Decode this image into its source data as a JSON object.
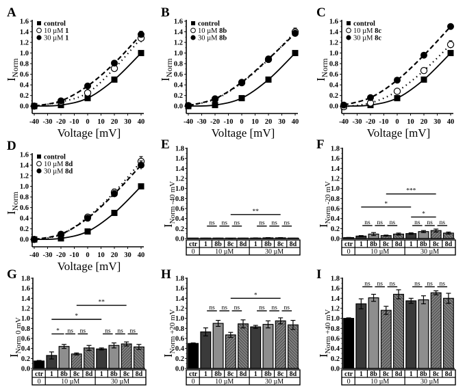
{
  "figure": {
    "colors": {
      "control": "#000000",
      "conc10_cpd1": "#3a3a3a",
      "conc10_8b": "#8c8c8c",
      "hatch_bg": "#6e6e6e",
      "hatch_line": "#b5b5b5"
    }
  },
  "chart_data": [
    {
      "panel": "A",
      "type": "line",
      "xlabel": "Voltage [mV]",
      "ylabel": "I",
      "ylabel_sub": "Norm",
      "xlim": [
        -40,
        40
      ],
      "ylim": [
        -0.1,
        1.6
      ],
      "xticks": [
        "-40",
        "-30",
        "-20",
        "-10",
        "0",
        "10",
        "20",
        "30",
        "40"
      ],
      "yticks": [
        "0.0",
        "0.2",
        "0.4",
        "0.6",
        "0.8",
        "1.0",
        "1.2",
        "1.4",
        "1.6"
      ],
      "x": [
        -40,
        -20,
        0,
        20,
        40
      ],
      "legend_position": "top-left",
      "series": [
        {
          "name": "control",
          "compound": "",
          "marker": "filled-square",
          "line": "solid",
          "values": [
            0.0,
            0.02,
            0.15,
            0.5,
            1.0
          ],
          "errors": [
            0.01,
            0.01,
            0.01,
            0.01,
            0.01
          ]
        },
        {
          "name": "10 µM ",
          "compound": "1",
          "marker": "open-circle",
          "line": "dotted",
          "values": [
            0.0,
            0.08,
            0.25,
            0.71,
            1.28
          ],
          "errors": [
            0.02,
            0.03,
            0.04,
            0.06,
            0.08
          ]
        },
        {
          "name": "30 µM ",
          "compound": "1",
          "marker": "filled-circle",
          "line": "dashed",
          "values": [
            0.0,
            0.1,
            0.38,
            0.81,
            1.35
          ],
          "errors": [
            0.02,
            0.03,
            0.04,
            0.05,
            0.06
          ]
        }
      ]
    },
    {
      "panel": "B",
      "type": "line",
      "xlabel": "Voltage [mV]",
      "ylabel": "I",
      "ylabel_sub": "Norm",
      "xlim": [
        -40,
        40
      ],
      "ylim": [
        -0.1,
        1.6
      ],
      "xticks": [
        "-40",
        "-30",
        "-20",
        "-10",
        "0",
        "10",
        "20",
        "30",
        "40"
      ],
      "yticks": [
        "0.0",
        "0.2",
        "0.4",
        "0.6",
        "0.8",
        "1.0",
        "1.2",
        "1.4",
        "1.6"
      ],
      "x": [
        -40,
        -20,
        0,
        20,
        40
      ],
      "legend_position": "top-left",
      "series": [
        {
          "name": "control",
          "compound": "",
          "marker": "filled-square",
          "line": "solid",
          "values": [
            0.0,
            0.02,
            0.15,
            0.5,
            1.0
          ],
          "errors": [
            0.01,
            0.01,
            0.01,
            0.01,
            0.01
          ]
        },
        {
          "name": "10 µM ",
          "compound": "8b",
          "marker": "open-circle",
          "line": "dotted",
          "values": [
            0.01,
            0.13,
            0.44,
            0.88,
            1.4
          ],
          "errors": [
            0.02,
            0.03,
            0.04,
            0.05,
            0.07
          ]
        },
        {
          "name": "30 µM ",
          "compound": "8b",
          "marker": "filled-circle",
          "line": "dashed",
          "values": [
            0.01,
            0.14,
            0.45,
            0.89,
            1.37
          ],
          "errors": [
            0.02,
            0.03,
            0.04,
            0.05,
            0.06
          ]
        }
      ]
    },
    {
      "panel": "C",
      "type": "line",
      "xlabel": "Voltage [mV]",
      "ylabel": "I",
      "ylabel_sub": "Norm",
      "xlim": [
        -40,
        40
      ],
      "ylim": [
        -0.1,
        1.6
      ],
      "xticks": [
        "-40",
        "-30",
        "-20",
        "-10",
        "0",
        "10",
        "20",
        "30",
        "40"
      ],
      "yticks": [
        "0.0",
        "0.2",
        "0.4",
        "0.6",
        "0.8",
        "1.0",
        "1.2",
        "1.4",
        "1.6"
      ],
      "x": [
        -40,
        -20,
        0,
        20,
        40
      ],
      "legend_position": "top-left",
      "series": [
        {
          "name": "control",
          "compound": "",
          "marker": "filled-square",
          "line": "solid",
          "values": [
            0.0,
            0.02,
            0.15,
            0.5,
            1.0
          ],
          "errors": [
            0.01,
            0.01,
            0.01,
            0.01,
            0.01
          ]
        },
        {
          "name": "10 µM ",
          "compound": "8c",
          "marker": "open-circle",
          "line": "dotted",
          "values": [
            -0.01,
            0.06,
            0.28,
            0.67,
            1.16
          ],
          "errors": [
            0.02,
            0.02,
            0.03,
            0.04,
            0.07
          ]
        },
        {
          "name": "30 µM ",
          "compound": "8c",
          "marker": "filled-circle",
          "line": "dashed",
          "values": [
            0.02,
            0.16,
            0.49,
            0.96,
            1.5
          ],
          "errors": [
            0.02,
            0.02,
            0.03,
            0.04,
            0.04
          ]
        }
      ]
    },
    {
      "panel": "D",
      "type": "line",
      "xlabel": "Voltage [mV]",
      "ylabel": "I",
      "ylabel_sub": "Norm",
      "xlim": [
        -40,
        40
      ],
      "ylim": [
        -0.1,
        1.6
      ],
      "xticks": [
        "-40",
        "-30",
        "-20",
        "-10",
        "0",
        "10",
        "20",
        "30",
        "40"
      ],
      "yticks": [
        "0.0",
        "0.2",
        "0.4",
        "0.6",
        "0.8",
        "1.0",
        "1.2",
        "1.4",
        "1.6"
      ],
      "x": [
        -40,
        -20,
        0,
        20,
        40
      ],
      "legend_position": "top-left",
      "series": [
        {
          "name": "control",
          "compound": "",
          "marker": "filled-square",
          "line": "solid",
          "values": [
            0.0,
            0.02,
            0.15,
            0.5,
            1.0
          ],
          "errors": [
            0.01,
            0.01,
            0.01,
            0.01,
            0.01
          ]
        },
        {
          "name": "10 µM ",
          "compound": "8d",
          "marker": "open-circle",
          "line": "dotted",
          "values": [
            0.0,
            0.09,
            0.42,
            0.89,
            1.47
          ],
          "errors": [
            0.02,
            0.03,
            0.04,
            0.06,
            0.09
          ]
        },
        {
          "name": "30 µM ",
          "compound": "8d",
          "marker": "filled-circle",
          "line": "dashed",
          "values": [
            0.0,
            0.1,
            0.4,
            0.86,
            1.4
          ],
          "errors": [
            0.02,
            0.03,
            0.04,
            0.06,
            0.08
          ]
        }
      ]
    },
    {
      "panel": "E",
      "type": "bar",
      "ylabel": "I",
      "ylabel_sub": "Norm -40 mV",
      "ylim": [
        0,
        1.8
      ],
      "yticks": [
        "0.0",
        "0.2",
        "0.4",
        "0.6",
        "0.8",
        "1.0",
        "1.2",
        "1.4",
        "1.6",
        "1.8"
      ],
      "categories": [
        "ctr",
        "1",
        "8b",
        "8c",
        "8d",
        "1",
        "8b",
        "8c",
        "8d"
      ],
      "groups": [
        {
          "label": "0",
          "span": 1
        },
        {
          "label": "10 µM",
          "span": 4
        },
        {
          "label": "30 µM",
          "span": 4
        }
      ],
      "values": [
        0.0,
        0.005,
        0.005,
        0.0,
        0.005,
        0.01,
        0.015,
        0.015,
        0.005
      ],
      "errors": [
        0.0,
        0.003,
        0.003,
        0.002,
        0.003,
        0.004,
        0.005,
        0.005,
        0.003
      ],
      "significance": [
        {
          "from": 1,
          "to": 2,
          "label": "ns",
          "y": 0.25
        },
        {
          "from": 2,
          "to": 3,
          "label": "ns",
          "y": 0.25
        },
        {
          "from": 3,
          "to": 4,
          "label": "ns",
          "y": 0.25
        },
        {
          "from": 5,
          "to": 6,
          "label": "ns",
          "y": 0.25
        },
        {
          "from": 6,
          "to": 7,
          "label": "ns",
          "y": 0.25
        },
        {
          "from": 7,
          "to": 8,
          "label": "ns",
          "y": 0.25
        },
        {
          "from": 3,
          "to": 7,
          "label": "**",
          "y": 0.48
        }
      ]
    },
    {
      "panel": "F",
      "type": "bar",
      "ylabel": "I",
      "ylabel_sub": "Norm -20 mV",
      "ylim": [
        0,
        1.8
      ],
      "yticks": [
        "0.0",
        "0.2",
        "0.4",
        "0.6",
        "0.8",
        "1.0",
        "1.2",
        "1.4",
        "1.6",
        "1.8"
      ],
      "categories": [
        "ctr",
        "1",
        "8b",
        "8c",
        "8d",
        "1",
        "8b",
        "8c",
        "8d"
      ],
      "groups": [
        {
          "label": "0",
          "span": 1
        },
        {
          "label": "10 µM",
          "span": 4
        },
        {
          "label": "30 µM",
          "span": 4
        }
      ],
      "values": [
        0.02,
        0.05,
        0.09,
        0.06,
        0.09,
        0.1,
        0.14,
        0.16,
        0.11
      ],
      "errors": [
        0.003,
        0.01,
        0.03,
        0.01,
        0.02,
        0.015,
        0.02,
        0.03,
        0.02
      ],
      "significance": [
        {
          "from": 1,
          "to": 2,
          "label": "ns",
          "y": 0.26
        },
        {
          "from": 2,
          "to": 3,
          "label": "ns",
          "y": 0.26
        },
        {
          "from": 3,
          "to": 4,
          "label": "ns",
          "y": 0.26
        },
        {
          "from": 5,
          "to": 6,
          "label": "ns",
          "y": 0.26
        },
        {
          "from": 6,
          "to": 7,
          "label": "ns",
          "y": 0.26
        },
        {
          "from": 7,
          "to": 8,
          "label": "ns",
          "y": 0.26
        },
        {
          "from": 5,
          "to": 7,
          "label": "*",
          "y": 0.43
        },
        {
          "from": 1,
          "to": 5,
          "label": "*",
          "y": 0.63
        },
        {
          "from": 3,
          "to": 7,
          "label": "***",
          "y": 0.89
        }
      ]
    },
    {
      "panel": "G",
      "type": "bar",
      "ylabel": "I",
      "ylabel_sub": "Norm 0 mV",
      "ylim": [
        0,
        1.8
      ],
      "yticks": [
        "0.0",
        "0.2",
        "0.4",
        "0.6",
        "0.8",
        "1.0",
        "1.2",
        "1.4",
        "1.6",
        "1.8"
      ],
      "categories": [
        "ctr",
        "1",
        "8b",
        "8c",
        "8d",
        "1",
        "8b",
        "8c",
        "8d"
      ],
      "groups": [
        {
          "label": "0",
          "span": 1
        },
        {
          "label": "10 µM",
          "span": 4
        },
        {
          "label": "30 µM",
          "span": 4
        }
      ],
      "values": [
        0.15,
        0.26,
        0.44,
        0.29,
        0.41,
        0.39,
        0.46,
        0.49,
        0.43
      ],
      "errors": [
        0.01,
        0.07,
        0.04,
        0.02,
        0.05,
        0.02,
        0.05,
        0.04,
        0.05
      ],
      "significance": [
        {
          "from": 1,
          "to": 2,
          "label": "*",
          "y": 0.69
        },
        {
          "from": 2,
          "to": 3,
          "label": "ns",
          "y": 0.69
        },
        {
          "from": 3,
          "to": 4,
          "label": "ns",
          "y": 0.69
        },
        {
          "from": 5,
          "to": 6,
          "label": "ns",
          "y": 0.69
        },
        {
          "from": 6,
          "to": 7,
          "label": "ns",
          "y": 0.69
        },
        {
          "from": 7,
          "to": 8,
          "label": "ns",
          "y": 0.69
        },
        {
          "from": 1,
          "to": 5,
          "label": "*",
          "y": 0.98
        },
        {
          "from": 3,
          "to": 7,
          "label": "**",
          "y": 1.26
        }
      ]
    },
    {
      "panel": "H",
      "type": "bar",
      "ylabel": "I",
      "ylabel_sub": "Norm +20 mV",
      "ylim": [
        0,
        1.8
      ],
      "yticks": [
        "0.0",
        "0.2",
        "0.4",
        "0.6",
        "0.8",
        "1.0",
        "1.2",
        "1.4",
        "1.6",
        "1.8"
      ],
      "categories": [
        "ctr",
        "1",
        "8b",
        "8c",
        "8d",
        "1",
        "8b",
        "8c",
        "8d"
      ],
      "groups": [
        {
          "label": "0",
          "span": 1
        },
        {
          "label": "10 µM",
          "span": 4
        },
        {
          "label": "30 µM",
          "span": 4
        }
      ],
      "values": [
        0.5,
        0.73,
        0.9,
        0.67,
        0.89,
        0.83,
        0.88,
        0.95,
        0.87
      ],
      "errors": [
        0.01,
        0.08,
        0.06,
        0.05,
        0.08,
        0.03,
        0.07,
        0.06,
        0.09
      ],
      "significance": [
        {
          "from": 1,
          "to": 2,
          "label": "ns",
          "y": 1.15
        },
        {
          "from": 2,
          "to": 3,
          "label": "ns",
          "y": 1.15
        },
        {
          "from": 3,
          "to": 4,
          "label": "ns",
          "y": 1.15
        },
        {
          "from": 5,
          "to": 6,
          "label": "ns",
          "y": 1.15
        },
        {
          "from": 6,
          "to": 7,
          "label": "ns",
          "y": 1.15
        },
        {
          "from": 7,
          "to": 8,
          "label": "ns",
          "y": 1.15
        },
        {
          "from": 3,
          "to": 7,
          "label": "*",
          "y": 1.4
        }
      ]
    },
    {
      "panel": "I",
      "type": "bar",
      "ylabel": "I",
      "ylabel_sub": "Norm +40 mV",
      "ylim": [
        0,
        1.8
      ],
      "yticks": [
        "0.0",
        "0.2",
        "0.4",
        "0.6",
        "0.8",
        "1.0",
        "1.2",
        "1.4",
        "1.6",
        "1.8"
      ],
      "categories": [
        "ctr",
        "1",
        "8b",
        "8c",
        "8d",
        "1",
        "8b",
        "8c",
        "8d"
      ],
      "groups": [
        {
          "label": "0",
          "span": 1
        },
        {
          "label": "10 µM",
          "span": 4
        },
        {
          "label": "30 µM",
          "span": 4
        }
      ],
      "values": [
        1.0,
        1.29,
        1.41,
        1.16,
        1.48,
        1.35,
        1.37,
        1.51,
        1.4
      ],
      "errors": [
        0.01,
        0.1,
        0.07,
        0.08,
        0.09,
        0.05,
        0.08,
        0.04,
        0.1
      ],
      "significance": [
        {
          "from": 1,
          "to": 2,
          "label": "ns",
          "y": 1.63
        },
        {
          "from": 2,
          "to": 3,
          "label": "ns",
          "y": 1.63
        },
        {
          "from": 3,
          "to": 4,
          "label": "ns",
          "y": 1.63
        },
        {
          "from": 5,
          "to": 6,
          "label": "ns",
          "y": 1.63
        },
        {
          "from": 6,
          "to": 7,
          "label": "ns",
          "y": 1.63
        },
        {
          "from": 7,
          "to": 8,
          "label": "ns",
          "y": 1.63
        }
      ]
    }
  ]
}
